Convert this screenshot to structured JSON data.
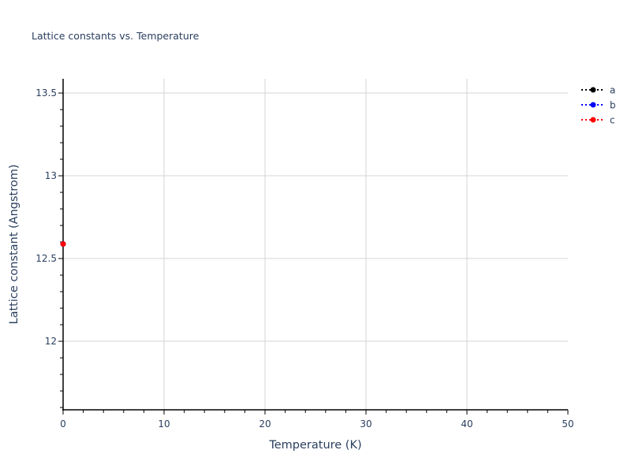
{
  "chart_data": {
    "type": "line",
    "title": "Lattice constants vs. Temperature",
    "xlabel": "Temperature (K)",
    "ylabel": "Lattice constant (Angstrom)",
    "xlim": [
      0,
      50
    ],
    "ylim": [
      11.586,
      13.586
    ],
    "xticks": [
      0,
      10,
      20,
      30,
      40,
      50
    ],
    "xtick_labels": [
      "0",
      "10",
      "20",
      "30",
      "40",
      "50"
    ],
    "yticks": [
      12,
      12.5,
      13,
      13.5
    ],
    "ytick_labels": [
      "12",
      "12.5",
      "13",
      "13.5"
    ],
    "x_minor_step": 2,
    "y_minor_step": 0.1,
    "grid": true,
    "legend_placement": "top-right",
    "line_style": "dotted",
    "marker": "circle",
    "series": [
      {
        "name": "a",
        "color": "#000000",
        "x": [
          0
        ],
        "y": [
          12.588
        ]
      },
      {
        "name": "b",
        "color": "#0000ff",
        "x": [
          0
        ],
        "y": [
          12.588
        ]
      },
      {
        "name": "c",
        "color": "#ff0000",
        "x": [
          0
        ],
        "y": [
          12.588
        ]
      }
    ]
  }
}
